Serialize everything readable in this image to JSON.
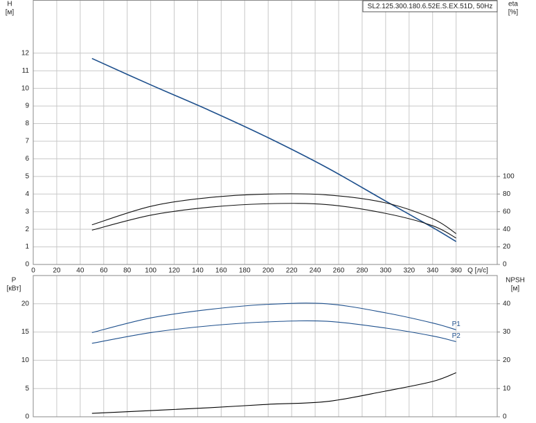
{
  "chart_data": [
    {
      "type": "line",
      "title": "SL2.125.300.180.6.52E.S.EX.51D, 50Hz",
      "ylabel": "H",
      "yunit": "[м]",
      "y2label": "eta",
      "y2unit": "[%]",
      "xlabel": "Q [л/с]",
      "x": [
        50,
        100,
        150,
        200,
        250,
        300,
        340,
        360
      ],
      "xlim": [
        0,
        395
      ],
      "xticks": [
        0,
        20,
        40,
        60,
        80,
        100,
        120,
        140,
        160,
        180,
        200,
        220,
        240,
        260,
        280,
        300,
        320,
        340,
        360
      ],
      "ylim": [
        0,
        15
      ],
      "yticks": [
        0,
        1,
        2,
        3,
        4,
        5,
        6,
        7,
        8,
        9,
        10,
        11,
        12
      ],
      "y2lim": [
        0,
        300
      ],
      "y2ticks": [
        0,
        20,
        40,
        60,
        80,
        100
      ],
      "grid": true,
      "series": [
        {
          "color": "#1d4f8c",
          "values": [
            11.7,
            10.2,
            8.75,
            7.2,
            5.5,
            3.6,
            2.1,
            1.3
          ]
        },
        {
          "color": "#111111",
          "axis": "y2",
          "values": [
            45,
            66,
            76,
            80,
            79,
            70,
            52,
            35
          ]
        },
        {
          "color": "#111111",
          "axis": "y2",
          "values": [
            39,
            56,
            65,
            69,
            68,
            58,
            44,
            30
          ]
        }
      ]
    },
    {
      "type": "line",
      "ylabel": "P",
      "yunit": "[кВт]",
      "y2label": "NPSH",
      "y2unit": "[м]",
      "x": [
        50,
        100,
        150,
        200,
        250,
        300,
        340,
        360
      ],
      "xlim": [
        0,
        395
      ],
      "xticks": [
        0,
        20,
        40,
        60,
        80,
        100,
        120,
        140,
        160,
        180,
        200,
        220,
        240,
        260,
        280,
        300,
        320,
        340,
        360
      ],
      "ylim": [
        0,
        25
      ],
      "yticks": [
        0,
        5,
        10,
        15,
        20
      ],
      "y2lim": [
        0,
        50
      ],
      "y2ticks": [
        0,
        10,
        20,
        30,
        40
      ],
      "grid": true,
      "series": [
        {
          "name": "P1",
          "color": "#1d4f8c",
          "values": [
            14.9,
            17.5,
            19.0,
            19.9,
            20.0,
            18.4,
            16.6,
            15.4
          ]
        },
        {
          "name": "P2",
          "color": "#1d4f8c",
          "values": [
            13.0,
            14.9,
            16.1,
            16.8,
            16.9,
            15.7,
            14.3,
            13.3
          ]
        },
        {
          "color": "#000000",
          "axis": "y2",
          "values": [
            1.2,
            2.2,
            3.2,
            4.4,
            5.4,
            9.1,
            12.5,
            15.6
          ]
        }
      ]
    }
  ]
}
